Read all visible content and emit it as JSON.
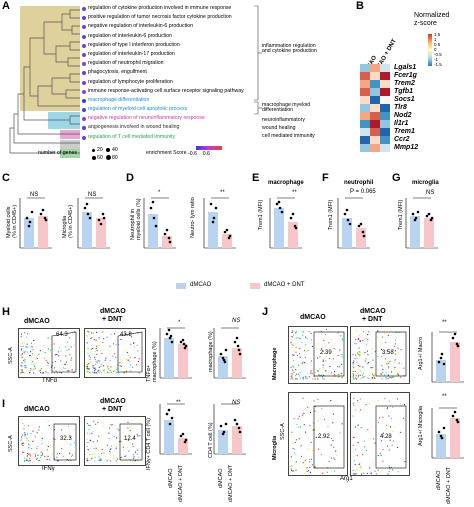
{
  "panelA": {
    "letter": "A",
    "terms": [
      "regulation of cytokine production involved in immune response",
      "positive regulation of tumor necrosis factor cytokine production",
      "negative regulation of interleukin-6 production",
      "regulation of interleukin-6 production",
      "regulation of type I interferon production",
      "regulation of interleukin-17 production",
      "regulation of neutrophil migration",
      "phagocytosis, engulfment",
      "regulation of lymphocyte proliferation",
      "immune response-activating cell surface receptor signaling pathway",
      "macrophage differentiation",
      "regulation of myeloid cell apoptotic process",
      "negative regulation of neuroinflammatory response",
      "angiogenesis involved in wound healing",
      "regulation of T cell mediated immunity"
    ],
    "term_colors": [
      "#000000",
      "#000000",
      "#000000",
      "#000000",
      "#000000",
      "#000000",
      "#000000",
      "#000000",
      "#000000",
      "#000000",
      "#1a8fd6",
      "#1a8fd6",
      "#c8379c",
      "#2c2c2c",
      "#2aa64a"
    ],
    "groups": [
      "inflammation regulation\nand cytokine production",
      "macrophage myeloid\ndifferentiation",
      "neuroinflammatory",
      "wound healing",
      "cell mediated immunity"
    ],
    "legend_genes_title": "number of genes",
    "legend_genes_values": [
      "20",
      "40",
      "60",
      "80"
    ],
    "legend_score_title": "enrichment Score",
    "legend_score_range": "-0.6    0.6"
  },
  "panelB": {
    "letter": "B",
    "col_labels": [
      "dMCAO + DNT",
      "dMCAO"
    ],
    "genes": [
      "Lgals1",
      "Fcer1g",
      "Trem2",
      "Tgfb1",
      "Socs1",
      "Tlr8",
      "Nod2",
      "Il1r1",
      "Trem1",
      "Ccr2",
      "Mmp12"
    ],
    "legend_title": "Normalized\nz-score",
    "legend_ticks": [
      "1.5",
      "1",
      "0.5",
      "0",
      "-0.5",
      "-1",
      "-1.5"
    ]
  },
  "panelC": {
    "letter": "C",
    "sub1_ylabel": "Myeloid cells\n(% in CD45+)",
    "sub2_ylabel": "Microglia\n(% in CD45+)",
    "sig1": "NS",
    "sig2": "NS"
  },
  "panelD": {
    "letter": "D",
    "sub1_ylabel": "Neutrophil in\nmyeloid cells (%)",
    "sub2_ylabel": "Neutro- lym ratio",
    "sig1": "*",
    "sig2": "**"
  },
  "panelE": {
    "letter": "E",
    "title": "macrophage",
    "ylabel": "Trem1 (MFI)",
    "sig": "**"
  },
  "panelF": {
    "letter": "F",
    "title": "neutrophil",
    "ylabel": "Trem1 (MFI)",
    "sig": "P = 0.065"
  },
  "panelG": {
    "letter": "G",
    "title": "microglia",
    "ylabel": "Trem1 (MFI)",
    "sig": "NS"
  },
  "legend": {
    "a": "dMCAO",
    "b": "dMCAO + DNT",
    "color_a": "#b9d4f0",
    "color_b": "#f7c6c9"
  },
  "panelH": {
    "letter": "H",
    "cond1": "dMCAO",
    "cond2": "+ DNT",
    "cond2_top": "dMCAO",
    "pct1": "64.3",
    "pct2": "43.8",
    "yaxis": "SSC-A",
    "xaxis": "TNFα",
    "bar1_ylabel": "TNFα+\nmacrophage (%)",
    "bar2_ylabel": "macrophage (%)",
    "sig1": "*",
    "sig2": "NS"
  },
  "panelI": {
    "letter": "I",
    "cond1": "dMCAO",
    "cond2_top": "dMCAO",
    "cond2": "+ DNT",
    "pct1": "32.3",
    "pct2": "12.4",
    "yaxis": "SSC-A",
    "xaxis": "IFNγ",
    "bar1_ylabel": "IFNγ+ CD4 T cell (%)",
    "bar2_ylabel": "CD4 T cell (%)",
    "sig1": "**",
    "sig2": "NS",
    "xticks": [
      "dMCAO",
      "dMCAO + DNT"
    ]
  },
  "panelJ": {
    "letter": "J",
    "cond1": "dMCAO",
    "cond2_top": "dMCAO",
    "cond2": "+ DNT",
    "row1": "Macrophage",
    "row2": "Microglia",
    "pct_m1": "2.39",
    "pct_m2": "3.58",
    "pct_g1": "2.92",
    "pct_g2": "4.28",
    "yaxis": "SSC-A",
    "xaxis": "Arg1",
    "bar1_ylabel": "Arg1+/ Macro",
    "bar2_ylabel": "Arg1+/ Microglia",
    "sig1": "**",
    "sig2": "**",
    "xticks": [
      "dMCAO",
      "dMCAO + DNT"
    ]
  }
}
